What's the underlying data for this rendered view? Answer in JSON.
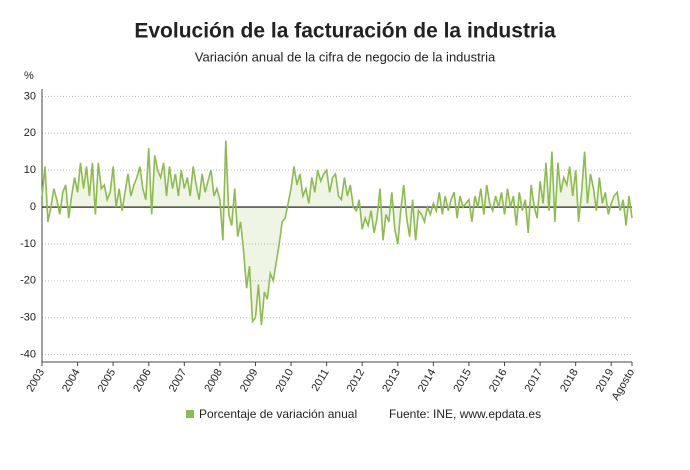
{
  "chart_data": {
    "type": "line",
    "title": "Evolución de la facturación de la industria",
    "subtitle": "Variación anual de la cifra de negocio de la industria",
    "y_unit": "%",
    "source": "Fuente: INE, www.epdata.es",
    "categories": [
      "2003",
      null,
      null,
      null,
      null,
      null,
      null,
      null,
      null,
      null,
      null,
      null,
      "2004",
      null,
      null,
      null,
      null,
      null,
      null,
      null,
      null,
      null,
      null,
      null,
      "2005",
      null,
      null,
      null,
      null,
      null,
      null,
      null,
      null,
      null,
      null,
      null,
      "2006",
      null,
      null,
      null,
      null,
      null,
      null,
      null,
      null,
      null,
      null,
      null,
      "2007",
      null,
      null,
      null,
      null,
      null,
      null,
      null,
      null,
      null,
      null,
      null,
      "2008",
      null,
      null,
      null,
      null,
      null,
      null,
      null,
      null,
      null,
      null,
      null,
      "2009",
      null,
      null,
      null,
      null,
      null,
      null,
      null,
      null,
      null,
      null,
      null,
      "2010",
      null,
      null,
      null,
      null,
      null,
      null,
      null,
      null,
      null,
      null,
      null,
      "2011",
      null,
      null,
      null,
      null,
      null,
      null,
      null,
      null,
      null,
      null,
      null,
      "2012",
      null,
      null,
      null,
      null,
      null,
      null,
      null,
      null,
      null,
      null,
      null,
      "2013",
      null,
      null,
      null,
      null,
      null,
      null,
      null,
      null,
      null,
      null,
      null,
      "2014",
      null,
      null,
      null,
      null,
      null,
      null,
      null,
      null,
      null,
      null,
      null,
      "2015",
      null,
      null,
      null,
      null,
      null,
      null,
      null,
      null,
      null,
      null,
      null,
      "2016",
      null,
      null,
      null,
      null,
      null,
      null,
      null,
      null,
      null,
      null,
      null,
      "2017",
      null,
      null,
      null,
      null,
      null,
      null,
      null,
      null,
      null,
      null,
      null,
      "2018",
      null,
      null,
      null,
      null,
      null,
      null,
      null,
      null,
      null,
      null,
      null,
      "2019",
      null,
      null,
      null,
      null,
      null,
      null,
      "Agosto"
    ],
    "series": [
      {
        "name": "Porcentaje de variación anual",
        "color": "#8dbb4e",
        "values": [
          3,
          11,
          -4,
          0,
          5,
          2,
          -2,
          4,
          6,
          -3,
          3,
          8,
          4,
          12,
          5,
          11,
          3,
          12,
          -2,
          12,
          5,
          6,
          2,
          4,
          11,
          0,
          5,
          -1,
          4,
          9,
          3,
          6,
          8,
          11,
          5,
          2,
          16,
          -2,
          14,
          10,
          8,
          12,
          3,
          11,
          5,
          9,
          3,
          10,
          5,
          8,
          3,
          11,
          6,
          2,
          9,
          4,
          7,
          10,
          3,
          5,
          2,
          -9,
          18,
          -2,
          -5,
          5,
          -8,
          -4,
          -12,
          -22,
          -16,
          -31,
          -30,
          -21,
          -32,
          -23,
          -25,
          -18,
          -20,
          -15,
          -10,
          -4,
          -3,
          1,
          5,
          11,
          6,
          9,
          3,
          5,
          1,
          8,
          4,
          10,
          7,
          9,
          10,
          4,
          8,
          9,
          3,
          2,
          8,
          3,
          6,
          0,
          -1,
          2,
          -6,
          -3,
          -5,
          -1,
          -7,
          -3,
          5,
          -9,
          -2,
          -4,
          4,
          -6,
          -10,
          -1,
          6,
          -3,
          -8,
          2,
          -9,
          -1,
          -2,
          -4,
          0,
          -2,
          1,
          -1,
          4,
          -2,
          3,
          -1,
          2,
          4,
          -3,
          3,
          0,
          1,
          2,
          -4,
          3,
          0,
          5,
          -2,
          6,
          1,
          -1,
          3,
          0,
          4,
          -2,
          5,
          0,
          3,
          -5,
          4,
          -1,
          2,
          -7,
          6,
          0,
          -3,
          7,
          1,
          12,
          -1,
          15,
          -4,
          12,
          4,
          8,
          6,
          11,
          3,
          10,
          -4,
          4,
          15,
          1,
          9,
          5,
          -1,
          8,
          1,
          4,
          -2,
          1,
          3,
          4,
          -1,
          2,
          -5,
          3,
          -3
        ]
      }
    ],
    "ylim": [
      -42,
      32
    ],
    "yticks": [
      -40,
      -30,
      -20,
      -10,
      0,
      10,
      20,
      30
    ],
    "grid": true
  }
}
